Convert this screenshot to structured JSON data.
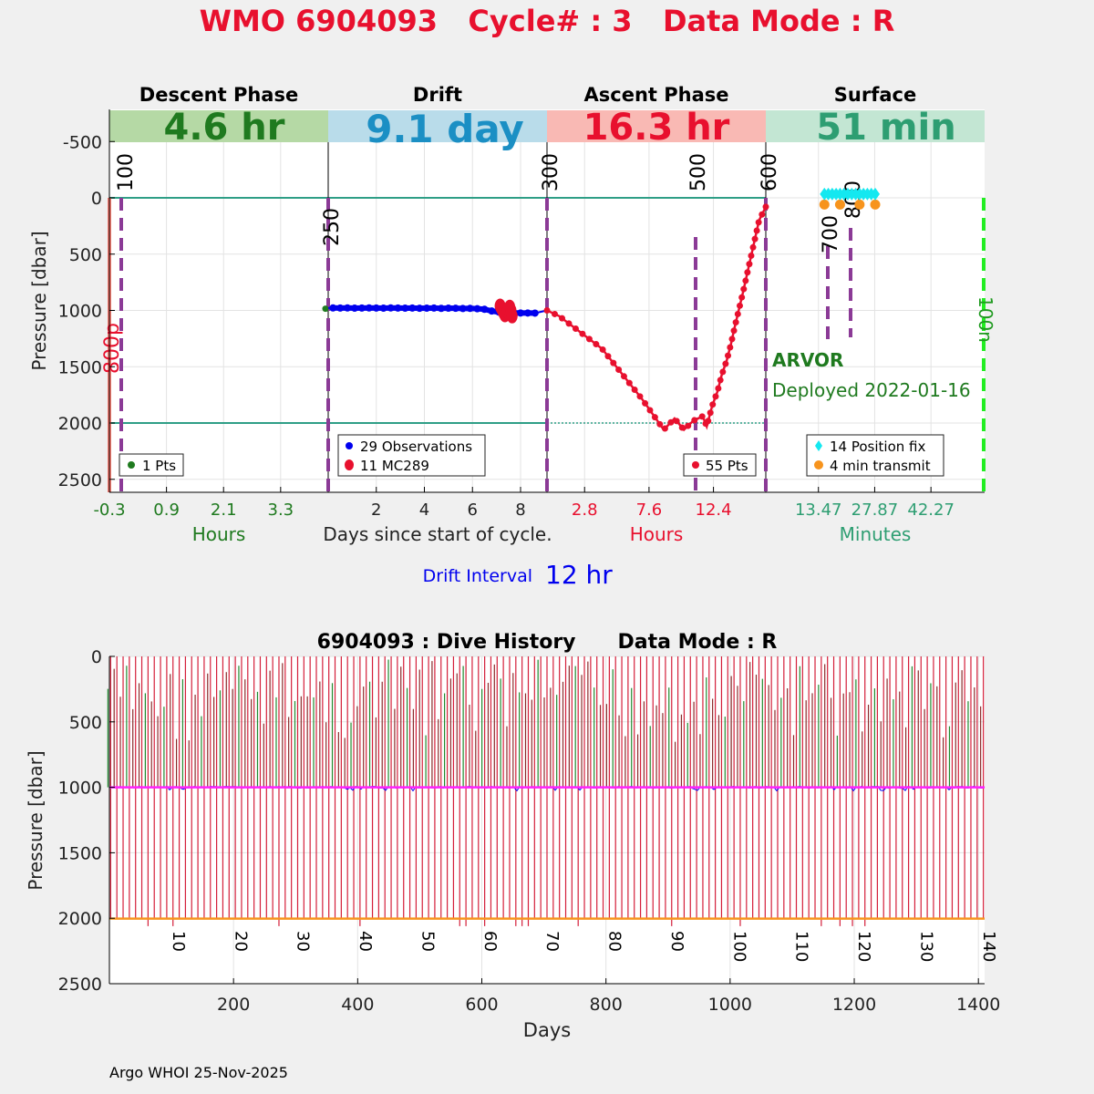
{
  "title": "WMO 6904093   Cycle# : 3   Data Mode : R",
  "footer": "Argo WHOI 25-Nov-2025",
  "colors": {
    "title": "#e8102e",
    "descent_band": "#b5d9a5",
    "descent_text": "#1f7a1f",
    "drift_band": "#b9dcea",
    "drift_text": "#1b8fc4",
    "ascent_band": "#f9b9b4",
    "ascent_text": "#e8102e",
    "surface_band": "#c3e6d3",
    "surface_text": "#2e9e72",
    "violet": "#8b3a96",
    "teal_line": "#2e9e86",
    "blue": "#0000ee",
    "red": "#e8102e",
    "green": "#1f7a1f",
    "cyan": "#14e8f0",
    "orange": "#f7941d",
    "lime": "#22ee22",
    "magenta": "#ff22ff"
  },
  "top_panel": {
    "ylabel": "Pressure [dbar]",
    "yticks": [
      "-500",
      "0",
      "500",
      "1000",
      "1500",
      "2000",
      "2500"
    ],
    "xlabel_center": "Days since start of cycle.",
    "drift_interval_label": "Drift Interval",
    "drift_interval_value": "12 hr",
    "float_type": "ARVOR",
    "deployed": "Deployed 2022-01-16",
    "left_marker": "800p",
    "right_marker": "100n",
    "phases": [
      {
        "name": "Descent Phase",
        "duration": "4.6 hr",
        "xticks": [
          "-0.3",
          "0.9",
          "2.1",
          "3.3"
        ],
        "unit": "Hours",
        "legend": [
          "1 Pts"
        ]
      },
      {
        "name": "Drift",
        "duration": "9.1 day",
        "xticks": [
          "2",
          "4",
          "6",
          "8"
        ],
        "unit": "",
        "legend": [
          "29 Observations",
          "11 MC289"
        ]
      },
      {
        "name": "Ascent Phase",
        "duration": "16.3 hr",
        "xticks": [
          "2.8",
          "7.6",
          "12.4"
        ],
        "unit": "Hours",
        "legend": [
          "55 Pts"
        ]
      },
      {
        "name": "Surface",
        "duration": "51 min",
        "xticks": [
          "13.47",
          "27.87",
          "42.27"
        ],
        "unit": "Minutes",
        "legend": [
          "14 Position fix",
          "4 min transmit"
        ]
      }
    ],
    "mc_labels": [
      "100",
      "250",
      "300",
      "500",
      "600",
      "700",
      "800"
    ]
  },
  "chart_data": [
    {
      "type": "line",
      "panel": "cycle profile",
      "ylabel": "Pressure [dbar]",
      "ylim": [
        2600,
        -750
      ],
      "y_reversed": true,
      "series": [
        {
          "phase": "Descent",
          "legend": "1 Pts",
          "points": [
            {
              "pressure": 985
            }
          ]
        },
        {
          "phase": "Drift",
          "legend": "29 Observations",
          "unit": "days",
          "x": [
            0.2,
            0.5,
            0.8,
            1.1,
            1.4,
            1.7,
            2.0,
            2.3,
            2.6,
            2.9,
            3.2,
            3.5,
            3.8,
            4.1,
            4.4,
            4.7,
            5.0,
            5.3,
            5.6,
            5.9,
            6.2,
            6.5,
            6.8,
            7.1,
            7.4,
            7.7,
            8.0,
            8.3,
            8.6
          ],
          "pressure": [
            978,
            979,
            978,
            980,
            979,
            978,
            979,
            980,
            978,
            979,
            980,
            979,
            981,
            980,
            979,
            982,
            980,
            981,
            983,
            982,
            985,
            990,
            1005,
            1015,
            1020,
            1022,
            1023,
            1023,
            1024
          ]
        },
        {
          "phase": "Drift",
          "legend": "11 MC289",
          "unit": "days",
          "x": [
            7.15,
            7.2,
            7.25,
            7.3,
            7.35,
            7.4,
            7.45,
            7.5,
            7.55,
            7.6,
            7.65
          ],
          "pressure": [
            960,
            980,
            1000,
            1020,
            1040,
            1030,
            1010,
            990,
            970,
            1000,
            1050
          ]
        },
        {
          "phase": "Ascent",
          "legend": "55 Pts",
          "unit": "hours",
          "x": [
            0.0,
            0.9,
            4.1,
            7.1,
            8.7,
            9.5,
            10.2,
            10.9,
            11.6,
            11.9,
            12.3,
            12.7,
            13.0,
            13.4,
            13.7,
            14.0,
            14.3,
            14.6,
            14.9,
            15.2,
            15.5,
            15.8,
            16.3
          ],
          "pressure": [
            1000,
            1050,
            1340,
            1790,
            2060,
            1960,
            2060,
            1980,
            1940,
            2030,
            1850,
            1720,
            1580,
            1440,
            1300,
            1140,
            990,
            840,
            680,
            520,
            360,
            200,
            80
          ]
        }
      ],
      "surface": {
        "unit": "minutes",
        "position_fix": {
          "legend": "14 Position fix",
          "x": [
            15,
            16,
            17,
            18,
            19,
            20,
            21,
            22,
            23,
            24,
            25,
            26,
            27,
            28
          ],
          "pressure": [
            -50,
            -50,
            -50,
            -50,
            -50,
            -50,
            -50,
            -50,
            -50,
            -50,
            -50,
            -50,
            -50,
            -50
          ]
        },
        "transmit": {
          "legend": "4 min transmit",
          "x": [
            15,
            19,
            24,
            28
          ],
          "pressure": [
            60,
            60,
            60,
            60
          ]
        }
      }
    },
    {
      "type": "line",
      "title": "6904093 : Dive History      Data Mode : R",
      "xlabel": "Days",
      "ylabel": "Pressure [dbar]",
      "xlim": [
        0,
        1410
      ],
      "ylim": [
        2500,
        0
      ],
      "y_reversed": true,
      "xticks": [
        200,
        400,
        600,
        800,
        1000,
        1200,
        1400
      ],
      "yticks": [
        0,
        500,
        1000,
        1500,
        2000,
        2500
      ],
      "cycle_labels": [
        "10",
        "20",
        "30",
        "40",
        "50",
        "60",
        "70",
        "80",
        "90",
        "100",
        "110",
        "120",
        "130",
        "140"
      ],
      "cycle_count": 141,
      "drift_pressure": 1000,
      "profile_pressure": 2000
    }
  ]
}
